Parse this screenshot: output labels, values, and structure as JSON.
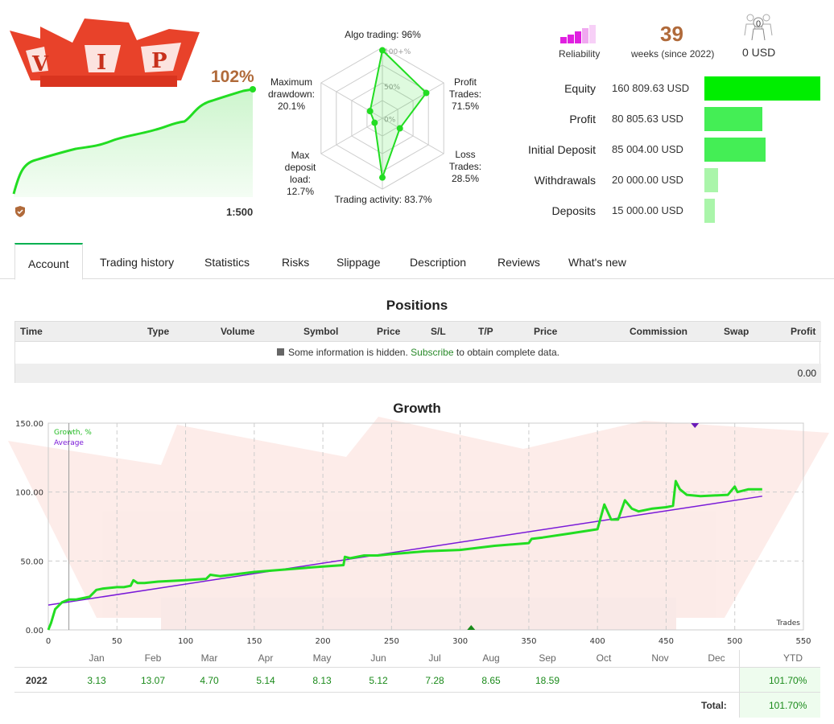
{
  "summary": {
    "growth_pct": "102%",
    "leverage": "1:500"
  },
  "radar": {
    "algo": "Algo trading: 96%",
    "profit_trades": [
      "Profit",
      "Trades:",
      "71.5%"
    ],
    "loss_trades": [
      "Loss",
      "Trades:",
      "28.5%"
    ],
    "activity": "Trading activity: 83.7%",
    "deposit_load": [
      "Max",
      "deposit",
      "load:",
      "12.7%"
    ],
    "drawdown": [
      "Maximum",
      "drawdown:",
      "20.1%"
    ],
    "scale": [
      "100+%",
      "50%",
      "0%"
    ],
    "values": {
      "algo": 96,
      "profit_trades": 71.5,
      "loss_trades": 28.5,
      "activity": 83.7,
      "deposit_load": 12.7,
      "drawdown": 20.1
    }
  },
  "stats": {
    "reliability_label": "Reliability",
    "weeks": "39",
    "weeks_label": "weeks (since 2022)",
    "subscribers": "0",
    "subscribers_funds": "0 USD"
  },
  "financials": [
    {
      "name": "Equity",
      "value": "160 809.63 USD",
      "ratio": 1.0,
      "color": "#00ee00"
    },
    {
      "name": "Profit",
      "value": "80 805.63 USD",
      "ratio": 0.5,
      "color": "#44ee55"
    },
    {
      "name": "Initial Deposit",
      "value": "85 004.00 USD",
      "ratio": 0.53,
      "color": "#44ee55"
    },
    {
      "name": "Withdrawals",
      "value": "20 000.00 USD",
      "ratio": 0.12,
      "color": "#aaf5aa"
    },
    {
      "name": "Deposits",
      "value": "15 000.00 USD",
      "ratio": 0.09,
      "color": "#aaf5aa"
    }
  ],
  "tabs": [
    "Account",
    "Trading history",
    "Statistics",
    "Risks",
    "Slippage",
    "Description",
    "Reviews",
    "What's new"
  ],
  "positions": {
    "title": "Positions",
    "columns": [
      "Time",
      "Type",
      "Volume",
      "Symbol",
      "Price",
      "S/L",
      "T/P",
      "Price",
      "Commission",
      "Swap",
      "Profit"
    ],
    "info_before": "Some information is hidden.",
    "info_link": "Subscribe",
    "info_after": "to obtain complete data.",
    "total": "0.00"
  },
  "growth": {
    "title": "Growth",
    "legend_growth": "Growth, %",
    "legend_average": "Average",
    "x_axis_label": "Trades"
  },
  "chart_data": {
    "type": "line",
    "title": "Growth",
    "xlabel": "Trades",
    "ylabel": "",
    "xlim": [
      0,
      550
    ],
    "ylim": [
      0,
      150
    ],
    "x_ticks": [
      0,
      50,
      100,
      150,
      200,
      250,
      300,
      350,
      400,
      450,
      500,
      550
    ],
    "y_ticks": [
      "0.00",
      "50.00",
      "100.00",
      "150.00"
    ],
    "series": [
      {
        "name": "Growth, %",
        "color": "#22dd22",
        "x": [
          0,
          2,
          5,
          10,
          15,
          20,
          25,
          30,
          35,
          40,
          50,
          55,
          60,
          62,
          65,
          70,
          80,
          100,
          115,
          118,
          125,
          150,
          175,
          200,
          215,
          216,
          220,
          230,
          240,
          250,
          275,
          300,
          325,
          350,
          352,
          360,
          380,
          400,
          405,
          410,
          415,
          420,
          425,
          430,
          440,
          450,
          455,
          457,
          460,
          465,
          475,
          495,
          500,
          502,
          510,
          520
        ],
        "y": [
          0,
          5,
          15,
          20,
          22,
          22,
          23,
          24,
          29,
          30,
          31,
          31,
          32,
          36,
          34,
          34,
          35,
          36,
          37,
          40,
          39,
          42,
          44,
          46,
          47,
          53,
          52,
          54,
          54,
          55,
          57,
          58,
          61,
          63,
          66,
          67,
          70,
          73,
          91,
          80,
          80,
          94,
          88,
          86,
          88,
          89,
          90,
          108,
          102,
          98,
          97,
          98,
          104,
          100,
          102,
          102
        ]
      },
      {
        "name": "Average",
        "color": "#7a1ad8",
        "x": [
          0,
          520
        ],
        "y": [
          18,
          97
        ]
      }
    ]
  },
  "monthly": {
    "months": [
      "Jan",
      "Feb",
      "Mar",
      "Apr",
      "May",
      "Jun",
      "Jul",
      "Aug",
      "Sep",
      "Oct",
      "Nov",
      "Dec"
    ],
    "ytd_label": "YTD",
    "year": "2022",
    "values": [
      "3.13",
      "13.07",
      "4.70",
      "5.14",
      "8.13",
      "5.12",
      "7.28",
      "8.65",
      "18.59",
      "",
      "",
      ""
    ],
    "ytd": "101.70%",
    "total_label": "Total:",
    "total": "101.70%"
  }
}
